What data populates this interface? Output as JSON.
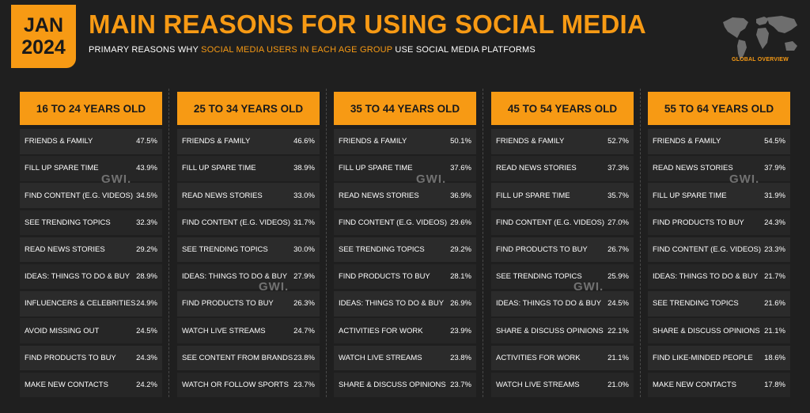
{
  "header": {
    "date_month": "JAN",
    "date_year": "2024",
    "title": "MAIN REASONS FOR USING SOCIAL MEDIA",
    "subtitle_pre": "PRIMARY REASONS WHY ",
    "subtitle_highlight": "SOCIAL MEDIA USERS IN EACH AGE GROUP",
    "subtitle_post": " USE SOCIAL MEDIA PLATFORMS",
    "logo_label": "GLOBAL OVERVIEW",
    "watermark": "GWI."
  },
  "colors": {
    "accent": "#f79a14",
    "background": "#1f1f1f",
    "row": "#2b2b2b"
  },
  "chart_data": [
    {
      "type": "table",
      "title": "16 TO 24 YEARS OLD",
      "rows": [
        {
          "label": "FRIENDS & FAMILY",
          "value": "47.5%"
        },
        {
          "label": "FILL UP SPARE TIME",
          "value": "43.9%"
        },
        {
          "label": "FIND CONTENT (E.G. VIDEOS)",
          "value": "34.5%"
        },
        {
          "label": "SEE TRENDING TOPICS",
          "value": "32.3%"
        },
        {
          "label": "READ NEWS STORIES",
          "value": "29.2%"
        },
        {
          "label": "IDEAS: THINGS TO DO & BUY",
          "value": "28.9%"
        },
        {
          "label": "INFLUENCERS & CELEBRITIES",
          "value": "24.9%"
        },
        {
          "label": "AVOID MISSING OUT",
          "value": "24.5%"
        },
        {
          "label": "FIND PRODUCTS TO BUY",
          "value": "24.3%"
        },
        {
          "label": "MAKE NEW CONTACTS",
          "value": "24.2%"
        }
      ]
    },
    {
      "type": "table",
      "title": "25 TO 34 YEARS OLD",
      "rows": [
        {
          "label": "FRIENDS & FAMILY",
          "value": "46.6%"
        },
        {
          "label": "FILL UP SPARE TIME",
          "value": "38.9%"
        },
        {
          "label": "READ NEWS STORIES",
          "value": "33.0%"
        },
        {
          "label": "FIND CONTENT (E.G. VIDEOS)",
          "value": "31.7%"
        },
        {
          "label": "SEE TRENDING TOPICS",
          "value": "30.0%"
        },
        {
          "label": "IDEAS: THINGS TO DO & BUY",
          "value": "27.9%"
        },
        {
          "label": "FIND PRODUCTS TO BUY",
          "value": "26.3%"
        },
        {
          "label": "WATCH LIVE STREAMS",
          "value": "24.7%"
        },
        {
          "label": "SEE CONTENT FROM BRANDS",
          "value": "23.8%"
        },
        {
          "label": "WATCH OR FOLLOW SPORTS",
          "value": "23.7%"
        }
      ]
    },
    {
      "type": "table",
      "title": "35 TO 44 YEARS OLD",
      "rows": [
        {
          "label": "FRIENDS & FAMILY",
          "value": "50.1%"
        },
        {
          "label": "FILL UP SPARE TIME",
          "value": "37.6%"
        },
        {
          "label": "READ NEWS STORIES",
          "value": "36.9%"
        },
        {
          "label": "FIND CONTENT (E.G. VIDEOS)",
          "value": "29.6%"
        },
        {
          "label": "SEE TRENDING TOPICS",
          "value": "29.2%"
        },
        {
          "label": "FIND PRODUCTS TO BUY",
          "value": "28.1%"
        },
        {
          "label": "IDEAS: THINGS TO DO & BUY",
          "value": "26.9%"
        },
        {
          "label": "ACTIVITIES FOR WORK",
          "value": "23.9%"
        },
        {
          "label": "WATCH LIVE STREAMS",
          "value": "23.8%"
        },
        {
          "label": "SHARE & DISCUSS OPINIONS",
          "value": "23.7%"
        }
      ]
    },
    {
      "type": "table",
      "title": "45 TO 54 YEARS OLD",
      "rows": [
        {
          "label": "FRIENDS & FAMILY",
          "value": "52.7%"
        },
        {
          "label": "READ NEWS STORIES",
          "value": "37.3%"
        },
        {
          "label": "FILL UP SPARE TIME",
          "value": "35.7%"
        },
        {
          "label": "FIND CONTENT (E.G. VIDEOS)",
          "value": "27.0%"
        },
        {
          "label": "FIND PRODUCTS TO BUY",
          "value": "26.7%"
        },
        {
          "label": "SEE TRENDING TOPICS",
          "value": "25.9%"
        },
        {
          "label": "IDEAS: THINGS TO DO & BUY",
          "value": "24.5%"
        },
        {
          "label": "SHARE & DISCUSS OPINIONS",
          "value": "22.1%"
        },
        {
          "label": "ACTIVITIES FOR WORK",
          "value": "21.1%"
        },
        {
          "label": "WATCH LIVE STREAMS",
          "value": "21.0%"
        }
      ]
    },
    {
      "type": "table",
      "title": "55 TO 64 YEARS OLD",
      "rows": [
        {
          "label": "FRIENDS & FAMILY",
          "value": "54.5%"
        },
        {
          "label": "READ NEWS STORIES",
          "value": "37.9%"
        },
        {
          "label": "FILL UP SPARE TIME",
          "value": "31.9%"
        },
        {
          "label": "FIND PRODUCTS TO BUY",
          "value": "24.3%"
        },
        {
          "label": "FIND CONTENT (E.G. VIDEOS)",
          "value": "23.3%"
        },
        {
          "label": "IDEAS: THINGS TO DO & BUY",
          "value": "21.7%"
        },
        {
          "label": "SEE TRENDING TOPICS",
          "value": "21.6%"
        },
        {
          "label": "SHARE & DISCUSS OPINIONS",
          "value": "21.1%"
        },
        {
          "label": "FIND LIKE-MINDED PEOPLE",
          "value": "18.6%"
        },
        {
          "label": "MAKE NEW CONTACTS",
          "value": "17.8%"
        }
      ]
    }
  ]
}
